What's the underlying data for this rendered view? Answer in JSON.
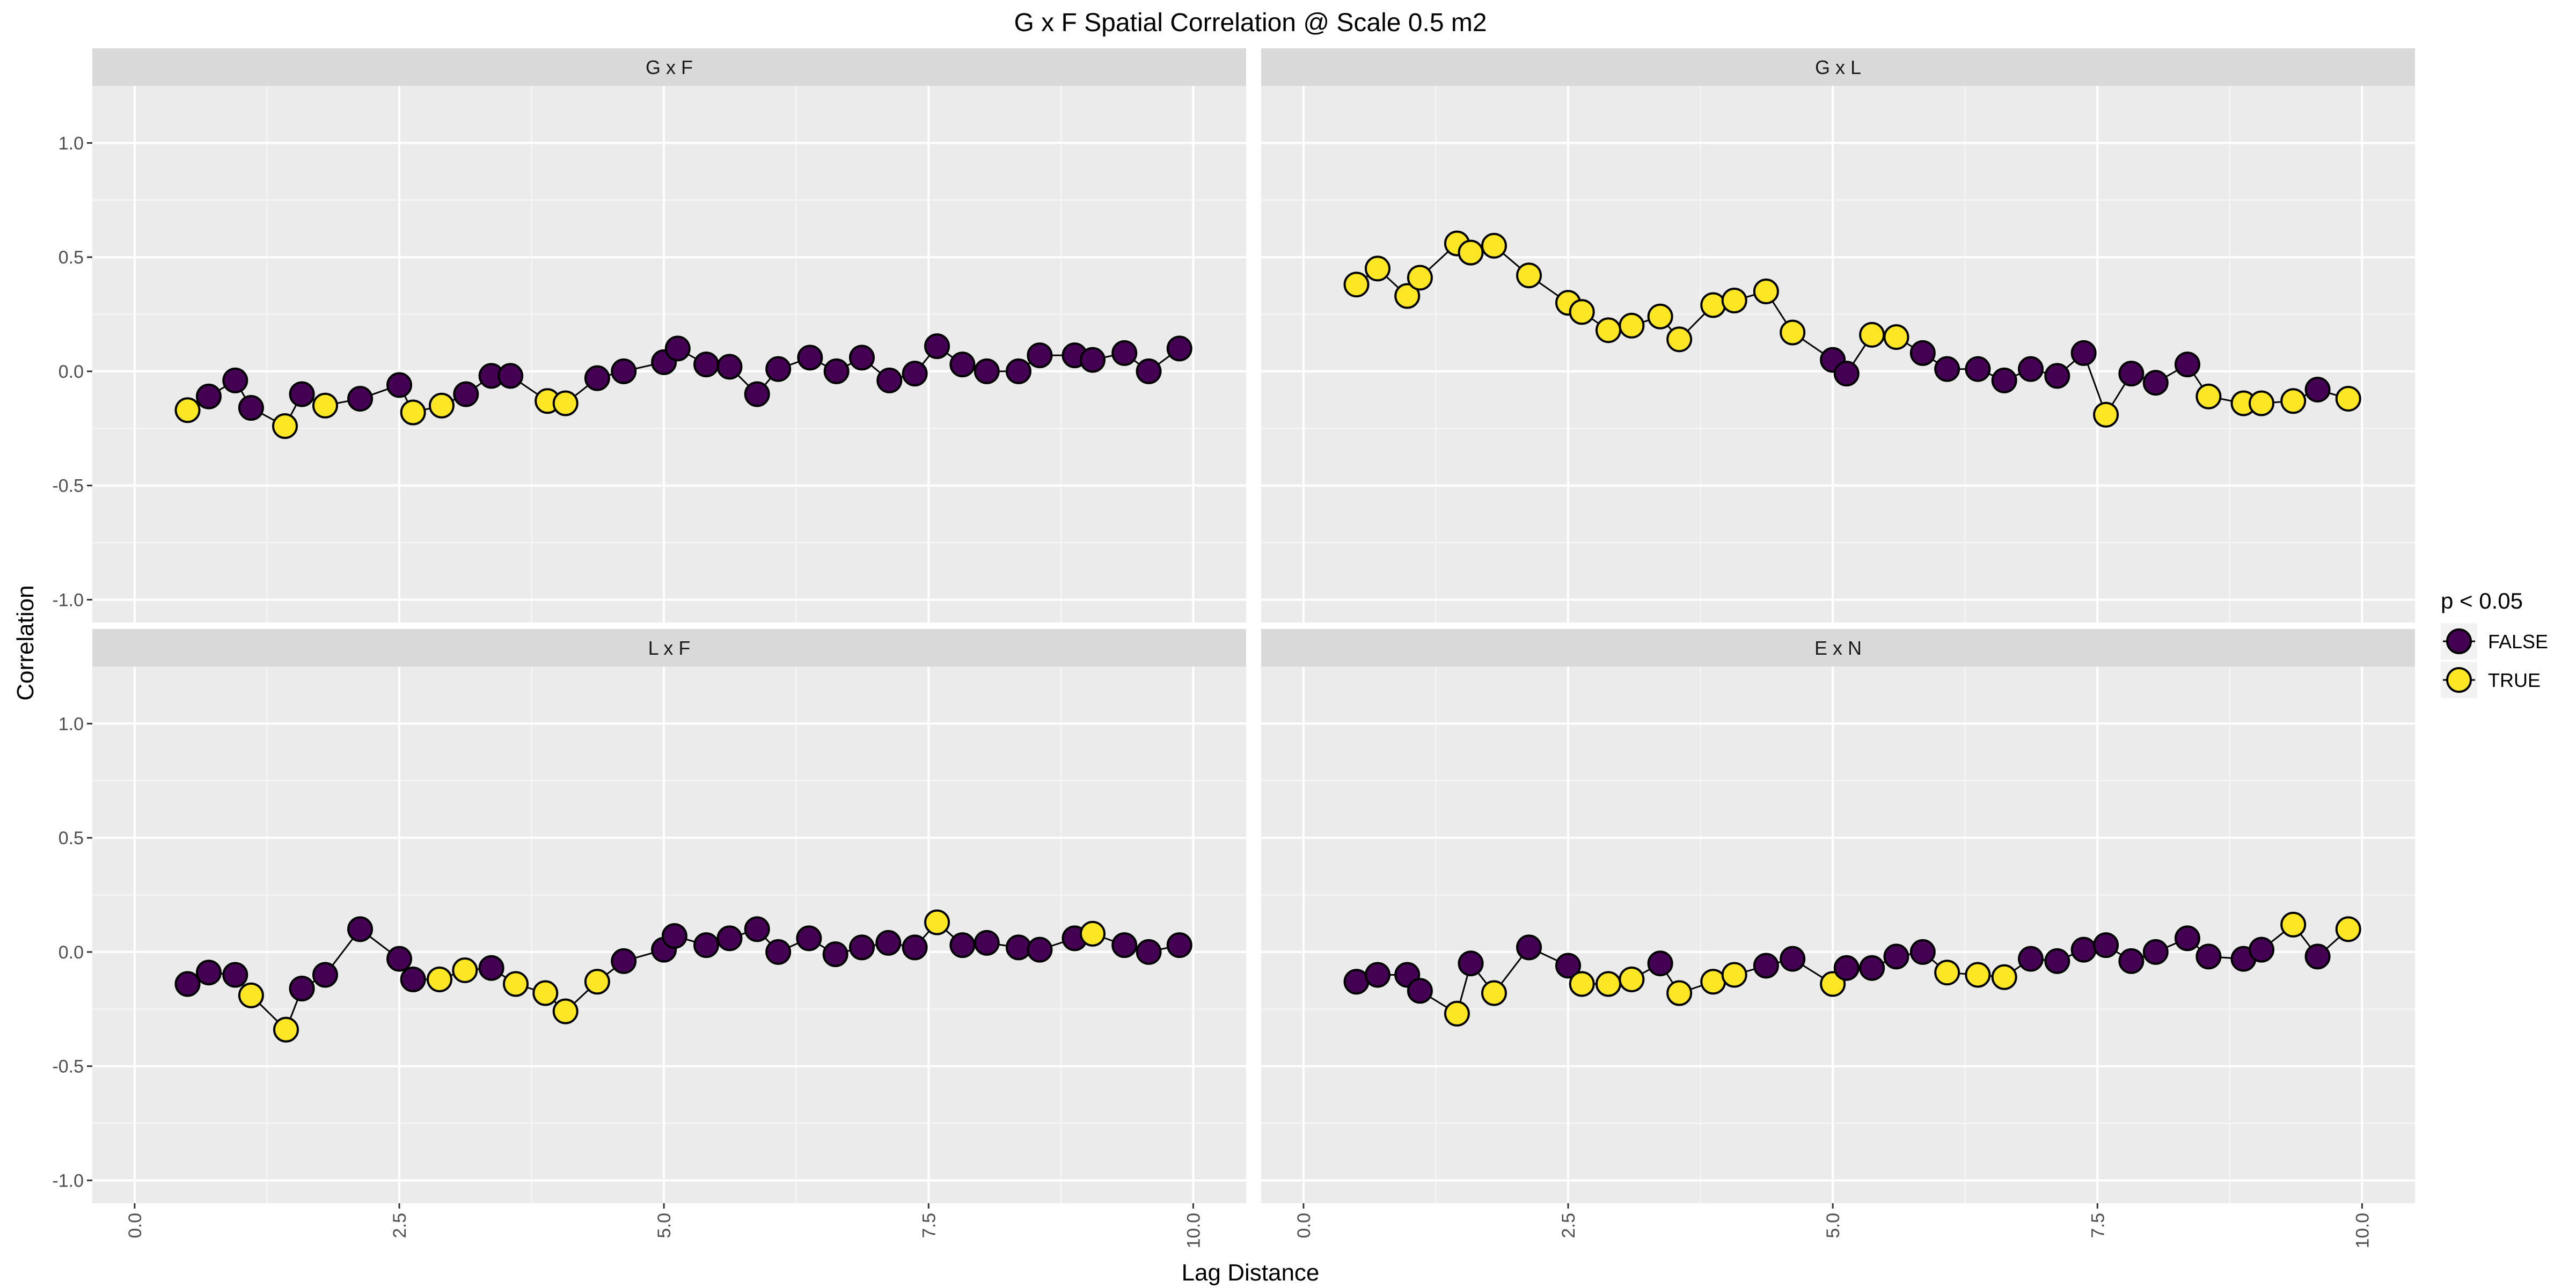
{
  "chart_data": {
    "type": "scatter",
    "title": "G x F Spatial Correlation @ Scale 0.5 m2",
    "xlabel": "Lag Distance",
    "ylabel": "Correlation",
    "xlim": [
      -0.4,
      10.5
    ],
    "ylim": [
      -1.1,
      1.25
    ],
    "xticks": [
      0,
      2.5,
      5,
      7.5,
      10
    ],
    "xtick_labels": [
      "0.0",
      "2.5",
      "5.0",
      "7.5",
      "10.0"
    ],
    "yticks": [
      -1,
      -0.5,
      0,
      0.5,
      1
    ],
    "ytick_labels": [
      "-1.0",
      "-0.5",
      "0.0",
      "0.5",
      "1.0"
    ],
    "grid": true,
    "connect_points": true,
    "legend": {
      "title": "p < 0.05",
      "position": "right",
      "entries": [
        {
          "label": "FALSE",
          "color": "#440154"
        },
        {
          "label": "TRUE",
          "color": "#fde725"
        }
      ]
    },
    "panels": [
      {
        "title": "G x F",
        "x": [
          0.5,
          0.7,
          0.95,
          1.1,
          1.42,
          1.58,
          1.8,
          2.13,
          2.5,
          2.63,
          2.9,
          3.13,
          3.37,
          3.55,
          3.9,
          4.07,
          4.37,
          4.62,
          5.0,
          5.13,
          5.4,
          5.62,
          5.88,
          6.08,
          6.38,
          6.63,
          6.87,
          7.13,
          7.37,
          7.58,
          7.82,
          8.05,
          8.35,
          8.55,
          8.88,
          9.05,
          9.35,
          9.58,
          9.87
        ],
        "y": [
          -0.17,
          -0.11,
          -0.04,
          -0.16,
          -0.24,
          -0.1,
          -0.15,
          -0.12,
          -0.06,
          -0.18,
          -0.15,
          -0.1,
          -0.02,
          -0.02,
          -0.13,
          -0.14,
          -0.03,
          0.0,
          0.04,
          0.1,
          0.03,
          0.02,
          -0.1,
          0.01,
          0.06,
          0.0,
          0.06,
          -0.04,
          -0.01,
          0.11,
          0.03,
          0.0,
          0.0,
          0.07,
          0.07,
          0.05,
          0.08,
          0.0,
          0.1
        ],
        "sig": [
          true,
          false,
          false,
          false,
          true,
          false,
          true,
          false,
          false,
          true,
          true,
          false,
          false,
          false,
          true,
          true,
          false,
          false,
          false,
          false,
          false,
          false,
          false,
          false,
          false,
          false,
          false,
          false,
          false,
          false,
          false,
          false,
          false,
          false,
          false,
          false,
          false,
          false,
          false
        ]
      },
      {
        "title": "G x L",
        "x": [
          0.5,
          0.7,
          0.98,
          1.1,
          1.45,
          1.58,
          1.8,
          2.13,
          2.5,
          2.63,
          2.88,
          3.1,
          3.37,
          3.55,
          3.87,
          4.07,
          4.37,
          4.62,
          5.0,
          5.13,
          5.37,
          5.6,
          5.85,
          6.08,
          6.37,
          6.62,
          6.87,
          7.12,
          7.37,
          7.58,
          7.82,
          8.05,
          8.35,
          8.55,
          8.88,
          9.05,
          9.35,
          9.58,
          9.87
        ],
        "y": [
          0.38,
          0.45,
          0.33,
          0.41,
          0.56,
          0.52,
          0.55,
          0.42,
          0.3,
          0.26,
          0.18,
          0.2,
          0.24,
          0.14,
          0.29,
          0.31,
          0.35,
          0.17,
          0.05,
          -0.01,
          0.16,
          0.15,
          0.08,
          0.01,
          0.01,
          -0.04,
          0.01,
          -0.02,
          0.08,
          -0.19,
          -0.01,
          -0.05,
          0.03,
          -0.11,
          -0.14,
          -0.14,
          -0.13,
          -0.08,
          -0.12
        ],
        "sig": [
          true,
          true,
          true,
          true,
          true,
          true,
          true,
          true,
          true,
          true,
          true,
          true,
          true,
          true,
          true,
          true,
          true,
          true,
          false,
          false,
          true,
          true,
          false,
          false,
          false,
          false,
          false,
          false,
          false,
          true,
          false,
          false,
          false,
          true,
          true,
          true,
          true,
          false,
          true
        ]
      },
      {
        "title": "L x F",
        "x": [
          0.5,
          0.7,
          0.95,
          1.1,
          1.43,
          1.58,
          1.8,
          2.13,
          2.5,
          2.63,
          2.88,
          3.12,
          3.37,
          3.6,
          3.88,
          4.07,
          4.37,
          4.62,
          5.0,
          5.1,
          5.4,
          5.62,
          5.88,
          6.08,
          6.37,
          6.62,
          6.87,
          7.12,
          7.37,
          7.58,
          7.82,
          8.05,
          8.35,
          8.55,
          8.88,
          9.05,
          9.35,
          9.58,
          9.87
        ],
        "y": [
          -0.14,
          -0.09,
          -0.1,
          -0.19,
          -0.34,
          -0.16,
          -0.1,
          0.1,
          -0.03,
          -0.12,
          -0.12,
          -0.08,
          -0.07,
          -0.14,
          -0.18,
          -0.26,
          -0.13,
          -0.04,
          0.01,
          0.07,
          0.03,
          0.06,
          0.1,
          0.0,
          0.06,
          -0.01,
          0.02,
          0.04,
          0.02,
          0.13,
          0.03,
          0.04,
          0.02,
          0.01,
          0.06,
          0.08,
          0.03,
          0.0,
          0.03
        ],
        "sig": [
          false,
          false,
          false,
          true,
          true,
          false,
          false,
          false,
          false,
          false,
          true,
          true,
          false,
          true,
          true,
          true,
          true,
          false,
          false,
          false,
          false,
          false,
          false,
          false,
          false,
          false,
          false,
          false,
          false,
          true,
          false,
          false,
          false,
          false,
          false,
          true,
          false,
          false,
          false
        ]
      },
      {
        "title": "E x N",
        "x": [
          0.5,
          0.7,
          0.98,
          1.1,
          1.45,
          1.58,
          1.8,
          2.13,
          2.5,
          2.63,
          2.88,
          3.1,
          3.37,
          3.55,
          3.87,
          4.07,
          4.37,
          4.62,
          5.0,
          5.13,
          5.37,
          5.6,
          5.85,
          6.08,
          6.37,
          6.62,
          6.87,
          7.12,
          7.37,
          7.58,
          7.82,
          8.05,
          8.35,
          8.55,
          8.88,
          9.05,
          9.35,
          9.58,
          9.87
        ],
        "y": [
          -0.13,
          -0.1,
          -0.1,
          -0.17,
          -0.27,
          -0.05,
          -0.18,
          0.02,
          -0.06,
          -0.14,
          -0.14,
          -0.12,
          -0.05,
          -0.18,
          -0.13,
          -0.1,
          -0.06,
          -0.03,
          -0.14,
          -0.07,
          -0.07,
          -0.02,
          0.0,
          -0.09,
          -0.1,
          -0.11,
          -0.03,
          -0.04,
          0.01,
          0.03,
          -0.04,
          0.0,
          0.06,
          -0.02,
          -0.03,
          0.01,
          0.12,
          -0.02,
          0.1
        ],
        "sig": [
          false,
          false,
          false,
          false,
          true,
          false,
          true,
          false,
          false,
          true,
          true,
          true,
          false,
          true,
          true,
          true,
          false,
          false,
          true,
          false,
          false,
          false,
          false,
          true,
          true,
          true,
          false,
          false,
          false,
          false,
          false,
          false,
          false,
          false,
          false,
          false,
          true,
          false,
          true
        ]
      }
    ]
  }
}
